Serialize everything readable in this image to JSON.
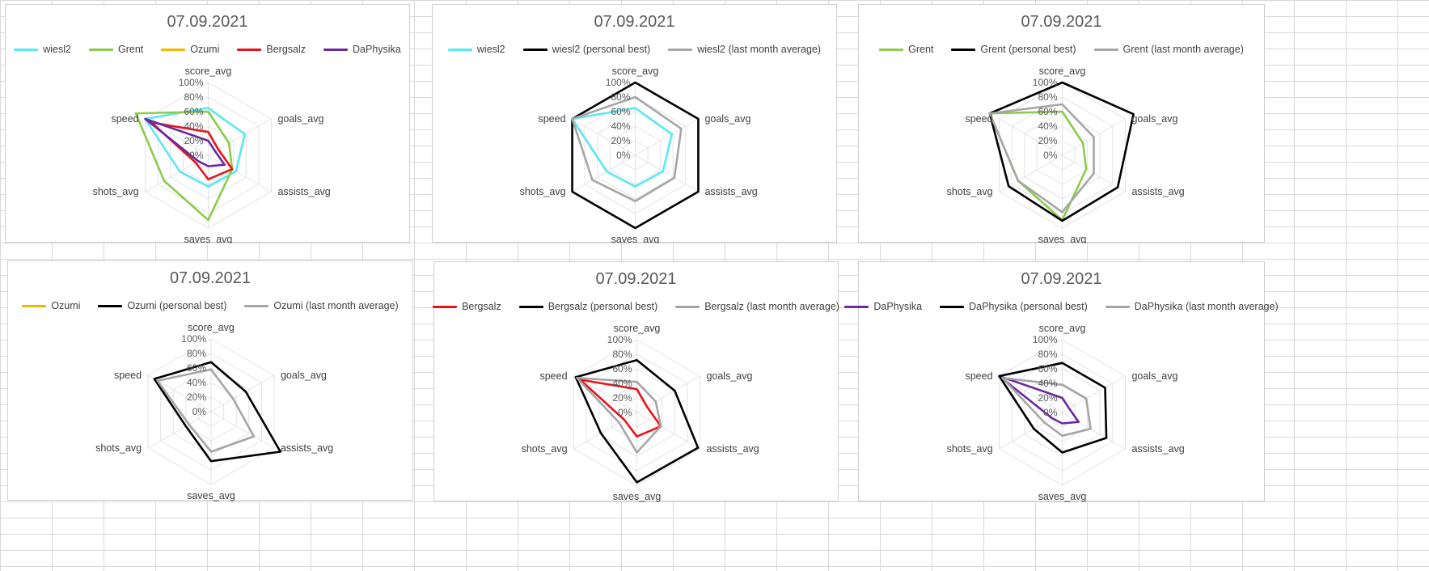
{
  "chart_data": [
    {
      "type": "radar",
      "title": "07.09.2021",
      "axes": [
        "score_avg",
        "goals_avg",
        "assists_avg",
        "saves_avg",
        "shots_avg",
        "speed"
      ],
      "ticks": [
        "0%",
        "20%",
        "40%",
        "60%",
        "80%",
        "100%"
      ],
      "ylim": [
        0,
        100
      ],
      "legend_position": "top",
      "series": [
        {
          "name": "wiesl2",
          "color": "#5ce8ef",
          "values": [
            65,
            58,
            44,
            43,
            45,
            100
          ]
        },
        {
          "name": "Grent",
          "color": "#8ccc4c",
          "values": [
            60,
            33,
            38,
            89,
            70,
            115
          ]
        },
        {
          "name": "Ozumi",
          "color": "#f5b800",
          "values": [
            0,
            0,
            0,
            0,
            0,
            0
          ]
        },
        {
          "name": "Bergsalz",
          "color": "#e8141a",
          "values": [
            32,
            16,
            38,
            33,
            20,
            90
          ]
        },
        {
          "name": "DaPhysika",
          "color": "#6a2b9e",
          "values": [
            20,
            11,
            26,
            15,
            16,
            100
          ]
        }
      ]
    },
    {
      "type": "radar",
      "title": "07.09.2021",
      "axes": [
        "score_avg",
        "goals_avg",
        "assists_avg",
        "saves_avg",
        "shots_avg",
        "speed"
      ],
      "ticks": [
        "0%",
        "20%",
        "40%",
        "60%",
        "80%",
        "100%"
      ],
      "ylim": [
        0,
        100
      ],
      "legend_position": "top",
      "series": [
        {
          "name": "wiesl2",
          "color": "#5ce8ef",
          "values": [
            65,
            58,
            44,
            43,
            45,
            100
          ]
        },
        {
          "name": "wiesl2 (personal best)",
          "color": "#000000",
          "values": [
            100,
            100,
            100,
            100,
            100,
            100
          ]
        },
        {
          "name": "wiesl2 (last month average)",
          "color": "#a6a6a6",
          "values": [
            80,
            73,
            62,
            63,
            68,
            100
          ]
        }
      ]
    },
    {
      "type": "radar",
      "title": "07.09.2021",
      "axes": [
        "score_avg",
        "goals_avg",
        "assists_avg",
        "saves_avg",
        "shots_avg",
        "speed"
      ],
      "ticks": [
        "0%",
        "20%",
        "40%",
        "60%",
        "80%",
        "100%"
      ],
      "ylim": [
        0,
        100
      ],
      "legend_position": "top",
      "series": [
        {
          "name": "Grent",
          "color": "#8ccc4c",
          "values": [
            60,
            33,
            38,
            89,
            70,
            115
          ]
        },
        {
          "name": "Grent (personal best)",
          "color": "#000000",
          "values": [
            100,
            113,
            88,
            90,
            85,
            115
          ]
        },
        {
          "name": "Grent (last month average)",
          "color": "#a6a6a6",
          "values": [
            70,
            50,
            50,
            78,
            70,
            115
          ]
        }
      ]
    },
    {
      "type": "radar",
      "title": "07.09.2021",
      "axes": [
        "score_avg",
        "goals_avg",
        "assists_avg",
        "saves_avg",
        "shots_avg",
        "speed"
      ],
      "ticks": [
        "0%",
        "20%",
        "40%",
        "60%",
        "80%",
        "100%"
      ],
      "ylim": [
        0,
        100
      ],
      "legend_position": "top",
      "series": [
        {
          "name": "Ozumi",
          "color": "#f5b800",
          "values": [
            0,
            0,
            0,
            0,
            0,
            0
          ]
        },
        {
          "name": "Ozumi (personal best)",
          "color": "#000000",
          "values": [
            68,
            55,
            110,
            68,
            40,
            90
          ]
        },
        {
          "name": "Ozumi (last month average)",
          "color": "#a6a6a6",
          "values": [
            58,
            35,
            68,
            55,
            35,
            85
          ]
        }
      ]
    },
    {
      "type": "radar",
      "title": "07.09.2021",
      "axes": [
        "score_avg",
        "goals_avg",
        "assists_avg",
        "saves_avg",
        "shots_avg",
        "speed"
      ],
      "ticks": [
        "0%",
        "20%",
        "40%",
        "60%",
        "80%",
        "100%"
      ],
      "ylim": [
        0,
        100
      ],
      "legend_position": "top",
      "series": [
        {
          "name": "Bergsalz",
          "color": "#e8141a",
          "values": [
            32,
            16,
            38,
            33,
            20,
            90
          ]
        },
        {
          "name": "Bergsalz (personal best)",
          "color": "#000000",
          "values": [
            72,
            60,
            97,
            96,
            57,
            97
          ]
        },
        {
          "name": "Bergsalz (last month average)",
          "color": "#a6a6a6",
          "values": [
            42,
            30,
            38,
            55,
            28,
            95
          ]
        }
      ]
    },
    {
      "type": "radar",
      "title": "07.09.2021",
      "axes": [
        "score_avg",
        "goals_avg",
        "assists_avg",
        "saves_avg",
        "shots_avg",
        "speed"
      ],
      "ticks": [
        "0%",
        "20%",
        "40%",
        "60%",
        "80%",
        "100%"
      ],
      "ylim": [
        0,
        100
      ],
      "legend_position": "top",
      "series": [
        {
          "name": "DaPhysika",
          "color": "#6a2b9e",
          "values": [
            20,
            11,
            26,
            15,
            16,
            100
          ]
        },
        {
          "name": "DaPhysika (personal best)",
          "color": "#000000",
          "values": [
            68,
            68,
            70,
            55,
            45,
            100
          ]
        },
        {
          "name": "DaPhysika (last month average)",
          "color": "#a6a6a6",
          "values": [
            38,
            38,
            45,
            32,
            28,
            95
          ]
        }
      ]
    }
  ]
}
